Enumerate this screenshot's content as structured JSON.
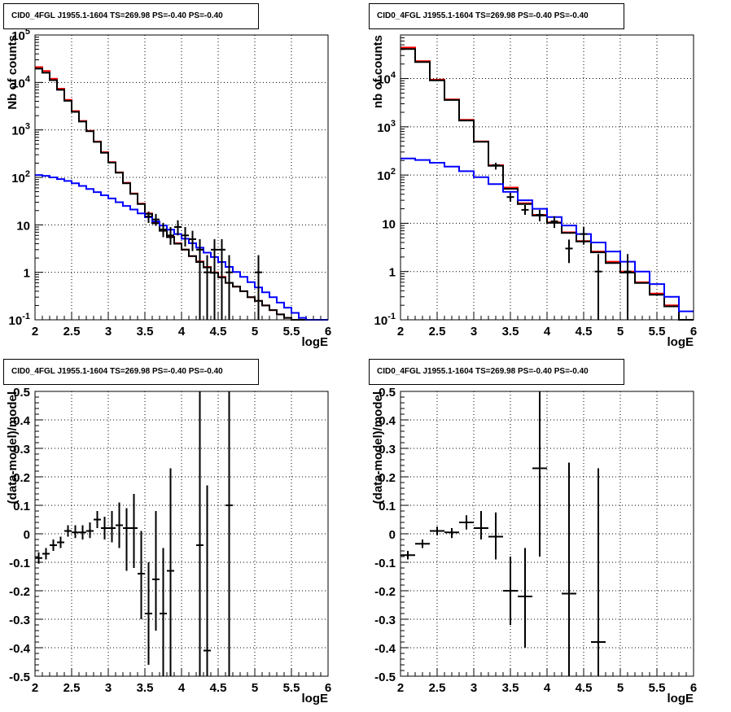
{
  "chart_data": [
    {
      "type": "step",
      "title": "CID0_4FGL J1955.1-1604 TS=269.98 PS=-0.40 PS=-0.40",
      "xlabel": "logE",
      "ylabel": "Nb of counts",
      "xlim": [
        2,
        6
      ],
      "ylim": [
        0.1,
        100000
      ],
      "yscale": "log",
      "grid": true,
      "xticks": [
        "2",
        "2.5",
        "3",
        "3.5",
        "4",
        "4.5",
        "5",
        "5.5",
        "6"
      ],
      "yticks": [
        "10^-1",
        "1",
        "10",
        "10^2",
        "10^3",
        "10^4",
        "10^5"
      ],
      "bin_edges": [
        2.0,
        2.1,
        2.2,
        2.3,
        2.4,
        2.5,
        2.6,
        2.7,
        2.8,
        2.9,
        3.0,
        3.1,
        3.2,
        3.3,
        3.4,
        3.5,
        3.6,
        3.7,
        3.8,
        3.9,
        4.0,
        4.1,
        4.2,
        4.3,
        4.4,
        4.5,
        4.6,
        4.7,
        4.8,
        4.9,
        5.0,
        5.1,
        5.2,
        5.3,
        5.4,
        5.5,
        5.6,
        5.7,
        5.8,
        5.9,
        6.0
      ],
      "series": [
        {
          "color": "#ff0000",
          "values": [
            21000,
            17500,
            12000,
            7400,
            4300,
            2500,
            1550,
            960,
            570,
            340,
            210,
            128,
            77,
            46,
            28,
            17.5,
            11,
            7.6,
            5.6,
            4.1,
            3.0,
            2.2,
            1.7,
            1.3,
            1.0,
            0.8,
            0.6,
            0.5,
            0.4,
            0.3,
            0.25,
            0.2,
            0.16,
            0.13,
            0.11,
            0.1,
            0.1,
            0.1,
            0.1,
            0.1
          ]
        },
        {
          "color": "#000000",
          "values": [
            19500,
            16000,
            11200,
            7000,
            4100,
            2400,
            1500,
            940,
            560,
            330,
            205,
            125,
            75,
            45,
            27.5,
            17,
            10.8,
            7.5,
            5.5,
            4.0,
            3.0,
            2.2,
            1.65,
            1.27,
            0.98,
            0.78,
            0.6,
            0.5,
            0.4,
            0.3,
            0.25,
            0.2,
            0.16,
            0.13,
            0.11,
            0.1,
            0.1,
            0.1,
            0.1,
            0.1
          ]
        },
        {
          "color": "#0000ff",
          "values": [
            112,
            108,
            100,
            92,
            84,
            75,
            66,
            57,
            49,
            42,
            36,
            30,
            25,
            21,
            17.5,
            14.5,
            11.8,
            9.7,
            7.9,
            6.4,
            5.1,
            4.1,
            3.3,
            2.6,
            2.1,
            1.65,
            1.3,
            1.02,
            0.8,
            0.62,
            0.48,
            0.38,
            0.3,
            0.23,
            0.18,
            0.14,
            0.11,
            0.1,
            0.1,
            0.1
          ]
        }
      ],
      "points": [
        {
          "x": 3.55,
          "y": 15,
          "ylo": 11,
          "yhi": 19
        },
        {
          "x": 3.65,
          "y": 13,
          "ylo": 9.5,
          "yhi": 17
        },
        {
          "x": 3.75,
          "y": 8,
          "ylo": 5.5,
          "yhi": 11
        },
        {
          "x": 3.85,
          "y": 6,
          "ylo": 3.8,
          "yhi": 9
        },
        {
          "x": 3.95,
          "y": 9,
          "ylo": 6,
          "yhi": 12.5
        },
        {
          "x": 4.05,
          "y": 6,
          "ylo": 3.5,
          "yhi": 9
        },
        {
          "x": 4.15,
          "y": 5,
          "ylo": 2.8,
          "yhi": 7.5
        },
        {
          "x": 4.25,
          "y": 3,
          "ylo": 0.1,
          "yhi": 5
        },
        {
          "x": 4.35,
          "y": 1,
          "ylo": 0.1,
          "yhi": 2.3
        },
        {
          "x": 4.45,
          "y": 3,
          "ylo": 0.1,
          "yhi": 5
        },
        {
          "x": 4.55,
          "y": 3,
          "ylo": 0.1,
          "yhi": 5
        },
        {
          "x": 4.65,
          "y": 1,
          "ylo": 0.1,
          "yhi": 2.3
        },
        {
          "x": 5.05,
          "y": 1,
          "ylo": 0.1,
          "yhi": 2.3
        }
      ]
    },
    {
      "type": "step",
      "title": "CID0_4FGL J1955.1-1604 TS=269.98 PS=-0.40 PS=-0.40",
      "xlabel": "logE",
      "ylabel": "nb of counts",
      "xlim": [
        2,
        6
      ],
      "ylim": [
        0.1,
        80000
      ],
      "yscale": "log",
      "grid": true,
      "xticks": [
        "2",
        "2.5",
        "3",
        "3.5",
        "4",
        "4.5",
        "5",
        "5.5",
        "6"
      ],
      "yticks": [
        "10^-1",
        "1",
        "10",
        "10^2",
        "10^3",
        "10^4"
      ],
      "bin_edges": [
        2.0,
        2.2,
        2.4,
        2.6,
        2.8,
        3.0,
        3.2,
        3.4,
        3.6,
        3.8,
        4.0,
        4.2,
        4.4,
        4.6,
        4.8,
        5.0,
        5.2,
        5.4,
        5.6,
        5.8,
        6.0
      ],
      "series": [
        {
          "color": "#ff0000",
          "values": [
            44000,
            23000,
            9500,
            3700,
            1400,
            500,
            160,
            55,
            26,
            15,
            10.5,
            6.5,
            4.3,
            2.6,
            1.6,
            1.0,
            0.6,
            0.35,
            0.2,
            0.1
          ]
        },
        {
          "color": "#000000",
          "values": [
            41000,
            22000,
            9200,
            3600,
            1350,
            490,
            155,
            52,
            25,
            14.5,
            10.2,
            6.3,
            4.2,
            2.5,
            1.5,
            0.95,
            0.58,
            0.33,
            0.19,
            0.1
          ]
        },
        {
          "color": "#0000ff",
          "values": [
            220,
            205,
            180,
            150,
            120,
            90,
            65,
            45,
            30,
            20,
            13.5,
            9,
            6,
            4,
            2.6,
            1.6,
            1.0,
            0.55,
            0.3,
            0.15
          ]
        }
      ],
      "points": [
        {
          "x": 3.3,
          "y": 160,
          "ylo": 130,
          "yhi": 180
        },
        {
          "x": 3.5,
          "y": 35,
          "ylo": 28,
          "yhi": 43
        },
        {
          "x": 3.7,
          "y": 19,
          "ylo": 15,
          "yhi": 24
        },
        {
          "x": 3.9,
          "y": 15,
          "ylo": 11,
          "yhi": 19
        },
        {
          "x": 4.1,
          "y": 11,
          "ylo": 8,
          "yhi": 14
        },
        {
          "x": 4.3,
          "y": 3,
          "ylo": 1.5,
          "yhi": 4.6
        },
        {
          "x": 4.5,
          "y": 6,
          "ylo": 3.6,
          "yhi": 8.5
        },
        {
          "x": 4.7,
          "y": 1,
          "ylo": 0.1,
          "yhi": 2.3
        },
        {
          "x": 5.1,
          "y": 1,
          "ylo": 0.1,
          "yhi": 2.3
        }
      ]
    },
    {
      "type": "scatter",
      "title": "CID0_4FGL J1955.1-1604 TS=269.98 PS=-0.40 PS=-0.40",
      "xlabel": "logE",
      "ylabel": "(data-model)/model",
      "xlim": [
        2,
        6
      ],
      "ylim": [
        -0.5,
        0.5
      ],
      "grid": true,
      "xticks": [
        "2",
        "2.5",
        "3",
        "3.5",
        "4",
        "4.5",
        "5",
        "5.5",
        "6"
      ],
      "yticks": [
        "-0.5",
        "-0.4",
        "-0.3",
        "-0.2",
        "-0.1",
        "0",
        "0.1",
        "0.2",
        "0.3",
        "0.4",
        "0.5"
      ],
      "xerr": 0.05,
      "points": [
        {
          "x": 2.05,
          "y": -0.085,
          "ylo": -0.105,
          "yhi": -0.065
        },
        {
          "x": 2.15,
          "y": -0.07,
          "ylo": -0.09,
          "yhi": -0.05
        },
        {
          "x": 2.25,
          "y": -0.04,
          "ylo": -0.06,
          "yhi": -0.02
        },
        {
          "x": 2.35,
          "y": -0.03,
          "ylo": -0.05,
          "yhi": -0.01
        },
        {
          "x": 2.45,
          "y": 0.01,
          "ylo": -0.01,
          "yhi": 0.03
        },
        {
          "x": 2.55,
          "y": 0.005,
          "ylo": -0.015,
          "yhi": 0.03
        },
        {
          "x": 2.65,
          "y": 0.005,
          "ylo": -0.02,
          "yhi": 0.03
        },
        {
          "x": 2.75,
          "y": 0.01,
          "ylo": -0.015,
          "yhi": 0.04
        },
        {
          "x": 2.85,
          "y": 0.05,
          "ylo": 0.02,
          "yhi": 0.08
        },
        {
          "x": 2.95,
          "y": 0.02,
          "ylo": -0.02,
          "yhi": 0.06
        },
        {
          "x": 3.05,
          "y": 0.02,
          "ylo": -0.03,
          "yhi": 0.08
        },
        {
          "x": 3.15,
          "y": 0.03,
          "ylo": -0.05,
          "yhi": 0.11
        },
        {
          "x": 3.25,
          "y": 0.02,
          "ylo": -0.13,
          "yhi": 0.09
        },
        {
          "x": 3.35,
          "y": 0.02,
          "ylo": -0.12,
          "yhi": 0.14
        },
        {
          "x": 3.45,
          "y": -0.14,
          "ylo": -0.3,
          "yhi": 0.01
        },
        {
          "x": 3.55,
          "y": -0.28,
          "ylo": -0.46,
          "yhi": -0.1
        },
        {
          "x": 3.65,
          "y": -0.16,
          "ylo": -0.34,
          "yhi": 0.08
        },
        {
          "x": 3.75,
          "y": -0.28,
          "ylo": -0.5,
          "yhi": -0.05
        },
        {
          "x": 3.85,
          "y": -0.13,
          "ylo": -0.5,
          "yhi": 0.23
        },
        {
          "x": 4.25,
          "y": -0.04,
          "ylo": -0.5,
          "yhi": 0.5
        },
        {
          "x": 4.35,
          "y": -0.41,
          "ylo": -0.5,
          "yhi": 0.17
        },
        {
          "x": 4.65,
          "y": 0.1,
          "ylo": -0.5,
          "yhi": 0.5
        }
      ]
    },
    {
      "type": "scatter",
      "title": "CID0_4FGL J1955.1-1604 TS=269.98 PS=-0.40 PS=-0.40",
      "xlabel": "logE",
      "ylabel": "(data-model)/model",
      "xlim": [
        2,
        6
      ],
      "ylim": [
        -0.5,
        0.5
      ],
      "grid": true,
      "xticks": [
        "2",
        "2.5",
        "3",
        "3.5",
        "4",
        "4.5",
        "5",
        "5.5",
        "6"
      ],
      "yticks": [
        "-0.5",
        "-0.4",
        "-0.3",
        "-0.2",
        "-0.1",
        "0",
        "0.1",
        "0.2",
        "0.3",
        "0.4",
        "0.5"
      ],
      "xerr": 0.1,
      "points": [
        {
          "x": 2.1,
          "y": -0.075,
          "ylo": -0.09,
          "yhi": -0.06
        },
        {
          "x": 2.3,
          "y": -0.035,
          "ylo": -0.05,
          "yhi": -0.02
        },
        {
          "x": 2.5,
          "y": 0.01,
          "ylo": -0.005,
          "yhi": 0.025
        },
        {
          "x": 2.7,
          "y": 0.005,
          "ylo": -0.015,
          "yhi": 0.02
        },
        {
          "x": 2.9,
          "y": 0.04,
          "ylo": 0.015,
          "yhi": 0.065
        },
        {
          "x": 3.1,
          "y": 0.02,
          "ylo": -0.02,
          "yhi": 0.08
        },
        {
          "x": 3.3,
          "y": -0.01,
          "ylo": -0.09,
          "yhi": 0.075
        },
        {
          "x": 3.5,
          "y": -0.2,
          "ylo": -0.32,
          "yhi": -0.08
        },
        {
          "x": 3.7,
          "y": -0.22,
          "ylo": -0.4,
          "yhi": -0.05
        },
        {
          "x": 3.9,
          "y": 0.23,
          "ylo": -0.08,
          "yhi": 0.5
        },
        {
          "x": 4.3,
          "y": -0.21,
          "ylo": -0.5,
          "yhi": 0.25
        },
        {
          "x": 4.7,
          "y": -0.38,
          "ylo": -0.5,
          "yhi": 0.23
        }
      ]
    }
  ]
}
